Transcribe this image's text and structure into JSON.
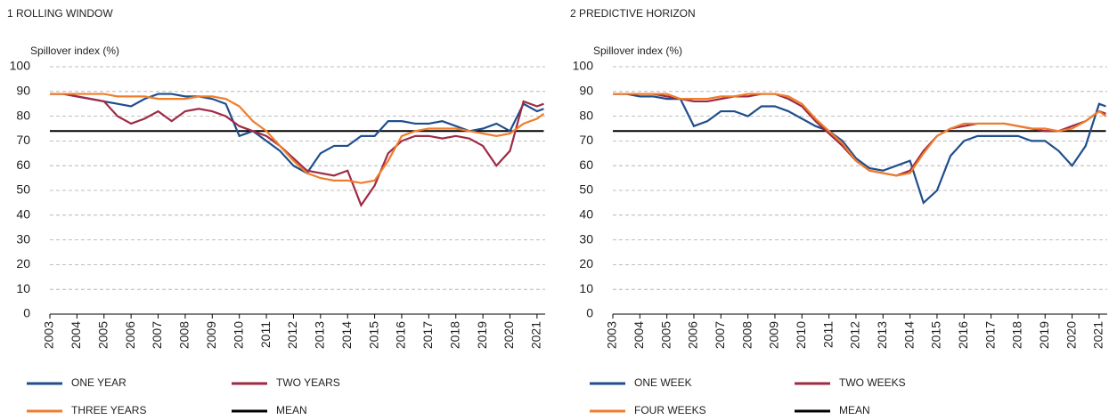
{
  "chart_data": [
    {
      "type": "line",
      "title": "1  ROLLING WINDOW",
      "y_label": "Spillover index (%)",
      "x": [
        2003,
        2003.5,
        2004,
        2004.5,
        2005,
        2005.5,
        2006,
        2006.5,
        2007,
        2007.5,
        2008,
        2008.5,
        2009,
        2009.5,
        2010,
        2010.5,
        2011,
        2011.5,
        2012,
        2012.5,
        2013,
        2013.5,
        2014,
        2014.5,
        2015,
        2015.5,
        2016,
        2016.5,
        2017,
        2017.5,
        2018,
        2018.5,
        2019,
        2019.5,
        2020,
        2020.5,
        2021,
        2021.25
      ],
      "xlim": [
        2003,
        2021.3
      ],
      "xticks": [
        2003,
        2004,
        2005,
        2006,
        2007,
        2008,
        2009,
        2010,
        2011,
        2012,
        2013,
        2014,
        2015,
        2016,
        2017,
        2018,
        2019,
        2020,
        2021
      ],
      "ylim": [
        0,
        100
      ],
      "yticks": [
        0,
        10,
        20,
        30,
        40,
        50,
        60,
        70,
        80,
        90,
        100
      ],
      "grid": true,
      "series": [
        {
          "name": "ONE YEAR",
          "color": "#1f4e8c",
          "values": [
            89,
            89,
            88,
            87,
            86,
            85,
            84,
            87,
            89,
            89,
            88,
            88,
            87,
            85,
            72,
            74,
            70,
            66,
            60,
            57,
            65,
            68,
            68,
            72,
            72,
            78,
            78,
            77,
            77,
            78,
            76,
            74,
            75,
            77,
            74,
            85,
            82,
            83
          ]
        },
        {
          "name": "TWO YEARS",
          "color": "#9e2b45",
          "values": [
            89,
            89,
            88,
            87,
            86,
            80,
            77,
            79,
            82,
            78,
            82,
            83,
            82,
            80,
            76,
            74,
            72,
            68,
            63,
            58,
            57,
            56,
            58,
            44,
            52,
            65,
            70,
            72,
            72,
            71,
            72,
            71,
            68,
            60,
            66,
            86,
            84,
            85
          ]
        },
        {
          "name": "THREE YEARS",
          "color": "#f07d2a",
          "values": [
            89,
            89,
            89,
            89,
            89,
            88,
            88,
            88,
            87,
            87,
            87,
            88,
            88,
            87,
            84,
            78,
            74,
            68,
            62,
            57,
            55,
            54,
            54,
            53,
            54,
            62,
            72,
            74,
            75,
            75,
            75,
            74,
            73,
            72,
            73,
            77,
            79,
            81
          ]
        },
        {
          "name": "MEAN",
          "color": "#000000",
          "values": [
            74,
            74,
            74,
            74,
            74,
            74,
            74,
            74,
            74,
            74,
            74,
            74,
            74,
            74,
            74,
            74,
            74,
            74,
            74,
            74,
            74,
            74,
            74,
            74,
            74,
            74,
            74,
            74,
            74,
            74,
            74,
            74,
            74,
            74,
            74,
            74,
            74,
            74
          ]
        }
      ]
    },
    {
      "type": "line",
      "title": "2  PREDICTIVE HORIZON",
      "y_label": "Spillover index (%)",
      "x": [
        2003,
        2003.5,
        2004,
        2004.5,
        2005,
        2005.5,
        2006,
        2006.5,
        2007,
        2007.5,
        2008,
        2008.5,
        2009,
        2009.5,
        2010,
        2010.5,
        2011,
        2011.5,
        2012,
        2012.5,
        2013,
        2013.5,
        2014,
        2014.5,
        2015,
        2015.5,
        2016,
        2016.5,
        2017,
        2017.5,
        2018,
        2018.5,
        2019,
        2019.5,
        2020,
        2020.5,
        2021,
        2021.25
      ],
      "xlim": [
        2003,
        2021.3
      ],
      "xticks": [
        2003,
        2004,
        2005,
        2006,
        2007,
        2008,
        2009,
        2010,
        2011,
        2012,
        2013,
        2014,
        2015,
        2016,
        2017,
        2018,
        2019,
        2020,
        2021
      ],
      "ylim": [
        0,
        100
      ],
      "yticks": [
        0,
        10,
        20,
        30,
        40,
        50,
        60,
        70,
        80,
        90,
        100
      ],
      "grid": true,
      "series": [
        {
          "name": "ONE WEEK",
          "color": "#1f4e8c",
          "values": [
            89,
            89,
            88,
            88,
            87,
            87,
            76,
            78,
            82,
            82,
            80,
            84,
            84,
            82,
            79,
            76,
            74,
            70,
            63,
            59,
            58,
            60,
            62,
            45,
            50,
            64,
            70,
            72,
            72,
            72,
            72,
            70,
            70,
            66,
            60,
            68,
            85,
            84
          ]
        },
        {
          "name": "TWO WEEKS",
          "color": "#9e2b45",
          "values": [
            89,
            89,
            89,
            89,
            88,
            87,
            86,
            86,
            87,
            88,
            88,
            89,
            89,
            87,
            84,
            78,
            73,
            68,
            62,
            58,
            57,
            56,
            58,
            66,
            72,
            75,
            76,
            77,
            77,
            77,
            76,
            75,
            74,
            74,
            76,
            78,
            82,
            81
          ]
        },
        {
          "name": "FOUR WEEKS",
          "color": "#f07d2a",
          "values": [
            89,
            89,
            89,
            89,
            89,
            87,
            87,
            87,
            88,
            88,
            89,
            89,
            89,
            88,
            85,
            79,
            74,
            69,
            62,
            58,
            57,
            56,
            57,
            65,
            72,
            75,
            77,
            77,
            77,
            77,
            76,
            75,
            75,
            74,
            75,
            78,
            82,
            80
          ]
        },
        {
          "name": "MEAN",
          "color": "#000000",
          "values": [
            74,
            74,
            74,
            74,
            74,
            74,
            74,
            74,
            74,
            74,
            74,
            74,
            74,
            74,
            74,
            74,
            74,
            74,
            74,
            74,
            74,
            74,
            74,
            74,
            74,
            74,
            74,
            74,
            74,
            74,
            74,
            74,
            74,
            74,
            74,
            74,
            74,
            74
          ]
        }
      ]
    }
  ]
}
